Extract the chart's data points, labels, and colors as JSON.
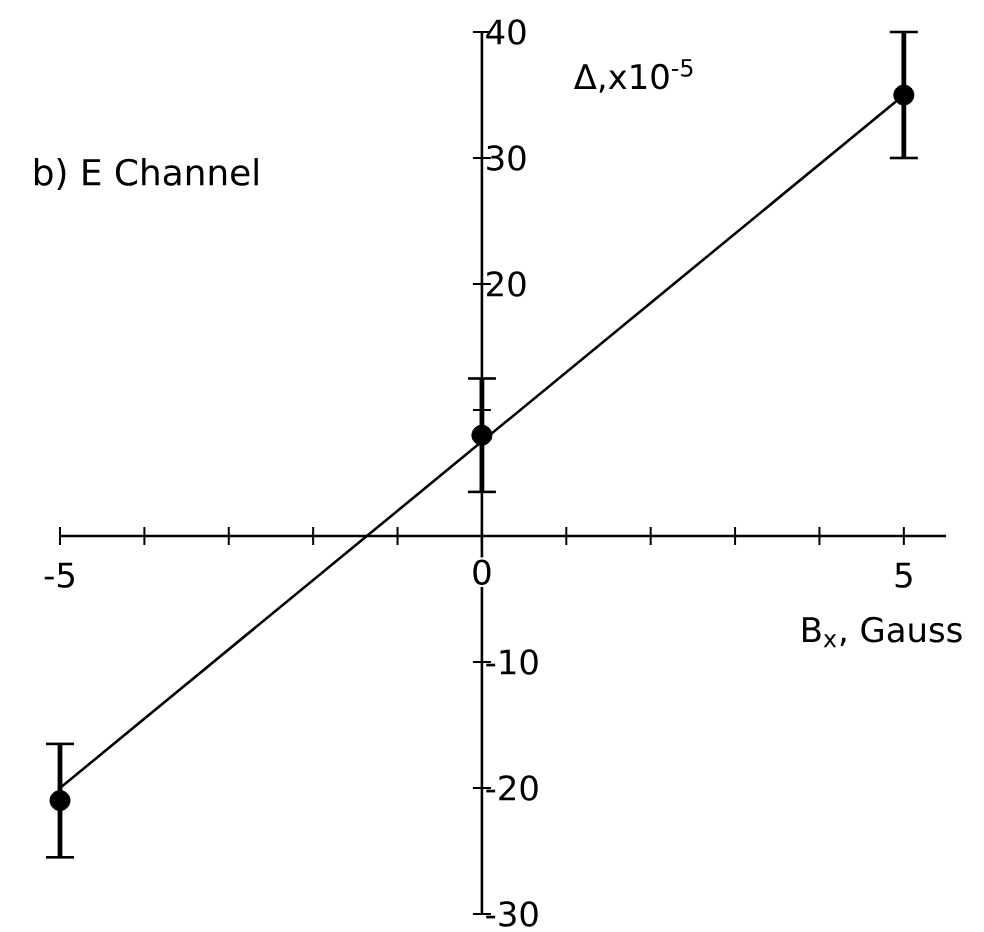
{
  "chart_data": {
    "type": "scatter",
    "title": "b) E Channel",
    "xlabel": "B$_{x}$, Gauss",
    "ylabel": "Δ,x10$^{-5}$",
    "marker": "circle",
    "series": [
      {
        "x": [
          -5,
          0,
          5
        ],
        "values": [
          -21,
          8,
          35
        ],
        "errors": [
          4.5,
          4.5,
          5
        ],
        "color": "#000000"
      },
      {
        "type": "line",
        "x": [
          -5,
          5
        ],
        "values": [
          -20,
          35
        ],
        "color": "#000000",
        "line_style": "solid",
        "marker": "none"
      }
    ],
    "xlim": [
      -5,
      5.5
    ],
    "ylim": [
      -30,
      40
    ],
    "xticks": [
      -5,
      {
        "value": -4,
        "label": null
      },
      {
        "value": -3,
        "label": null
      },
      {
        "value": -2,
        "label": null
      },
      {
        "value": -1,
        "label": null
      },
      0,
      {
        "value": 1,
        "label": null
      },
      {
        "value": 2,
        "label": null
      },
      {
        "value": 3,
        "label": null
      },
      {
        "value": 4,
        "label": null
      },
      5
    ],
    "yticks": [
      -30,
      -20,
      -10,
      {
        "value": 10,
        "label": null
      },
      20,
      30,
      40
    ]
  }
}
